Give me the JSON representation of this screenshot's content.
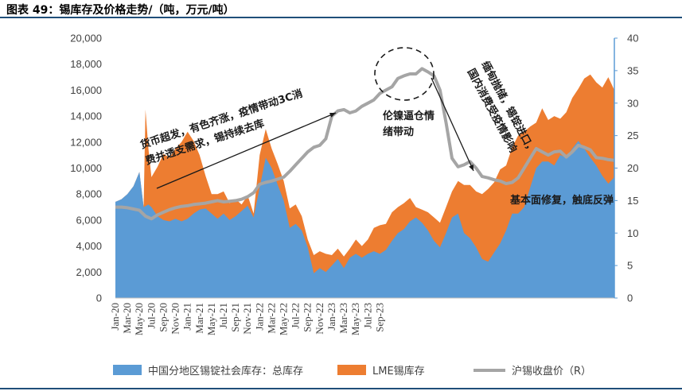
{
  "figure": {
    "title": "图表 49：锡库存及价格走势/（吨，万元/吨）"
  },
  "colors": {
    "china_stock": "#5b9bd5",
    "lme_stock": "#ed7d31",
    "price": "#a5a5a5",
    "axis_right": "#5b9bd5",
    "title_rule": "#1f4e79"
  },
  "chart_data": {
    "type": "area",
    "x_ticks": [
      "Jan-20",
      "Mar-20",
      "May-20",
      "Jul-20",
      "Sep-20",
      "Nov-20",
      "Jan-21",
      "Mar-21",
      "May-21",
      "Jul-21",
      "Sep-21",
      "Nov-21",
      "Jan-22",
      "Mar-22",
      "May-22",
      "Jul-22",
      "Sep-22",
      "Nov-22",
      "Jan-23",
      "Mar-23",
      "May-23",
      "Jul-23",
      "Sep-23"
    ],
    "y_left": {
      "min": 0,
      "max": 20000,
      "step": 2000,
      "tick_labels": [
        "0",
        "2,000",
        "4,000",
        "6,000",
        "8,000",
        "10,000",
        "12,000",
        "14,000",
        "16,000",
        "18,000",
        "20,000"
      ]
    },
    "y_right": {
      "min": 0,
      "max": 40,
      "step": 5,
      "tick_labels": [
        "0",
        "5",
        "10",
        "15",
        "20",
        "25",
        "30",
        "35",
        "40"
      ]
    },
    "series": [
      {
        "name": "中国分地区锡锭社会库存：总库存",
        "kind": "area",
        "axis": "left",
        "color": "#5b9bd5",
        "points": [
          [
            0,
            7400
          ],
          [
            1,
            7600
          ],
          [
            2,
            8000
          ],
          [
            3,
            8600
          ],
          [
            4,
            9700
          ],
          [
            4.7,
            7000
          ],
          [
            5.5,
            7200
          ],
          [
            6,
            7000
          ],
          [
            7,
            6300
          ],
          [
            8,
            6000
          ],
          [
            9,
            5900
          ],
          [
            10,
            6100
          ],
          [
            11,
            5900
          ],
          [
            12,
            6100
          ],
          [
            13,
            6500
          ],
          [
            14,
            6800
          ],
          [
            15,
            6900
          ],
          [
            16,
            6500
          ],
          [
            17,
            6100
          ],
          [
            18,
            6500
          ],
          [
            19,
            6000
          ],
          [
            20,
            6300
          ],
          [
            21,
            6700
          ],
          [
            22,
            7100
          ],
          [
            23,
            6200
          ],
          [
            24,
            8500
          ],
          [
            25,
            10800
          ],
          [
            26,
            10000
          ],
          [
            27,
            8700
          ],
          [
            28,
            7500
          ],
          [
            29,
            5400
          ],
          [
            30,
            5700
          ],
          [
            31,
            5200
          ],
          [
            32,
            3900
          ],
          [
            33,
            1900
          ],
          [
            34,
            2300
          ],
          [
            35,
            2000
          ],
          [
            36,
            2500
          ],
          [
            37,
            3000
          ],
          [
            38,
            2300
          ],
          [
            39,
            3100
          ],
          [
            40,
            3400
          ],
          [
            41,
            3100
          ],
          [
            42,
            3400
          ],
          [
            43,
            3600
          ],
          [
            44,
            3400
          ],
          [
            45,
            3700
          ],
          [
            46,
            4400
          ],
          [
            47,
            5000
          ],
          [
            48,
            5300
          ],
          [
            49,
            5900
          ],
          [
            50,
            6200
          ],
          [
            51,
            5800
          ],
          [
            52,
            5200
          ],
          [
            53,
            4400
          ],
          [
            54,
            3900
          ],
          [
            55,
            5000
          ],
          [
            56,
            6200
          ],
          [
            57,
            6500
          ],
          [
            58,
            5000
          ],
          [
            59,
            4600
          ],
          [
            60,
            3900
          ],
          [
            61,
            3000
          ],
          [
            62,
            2800
          ],
          [
            63,
            3500
          ],
          [
            64,
            4200
          ],
          [
            65,
            5200
          ],
          [
            66,
            6500
          ],
          [
            67,
            6500
          ],
          [
            68,
            7000
          ],
          [
            69,
            8500
          ],
          [
            70,
            10000
          ],
          [
            71,
            10500
          ],
          [
            72,
            10500
          ],
          [
            73,
            10200
          ],
          [
            74,
            11000
          ],
          [
            75,
            10800
          ],
          [
            76,
            11500
          ],
          [
            77,
            12100
          ],
          [
            78,
            11500
          ],
          [
            79,
            10800
          ],
          [
            80,
            10200
          ],
          [
            81,
            9400
          ],
          [
            82,
            8800
          ],
          [
            83,
            9300
          ]
        ]
      },
      {
        "name": "LME锡库存",
        "kind": "area",
        "axis": "left",
        "color": "#ed7d31",
        "points": [
          [
            0,
            7400
          ],
          [
            1,
            7600
          ],
          [
            2,
            8000
          ],
          [
            3,
            8600
          ],
          [
            4,
            9700
          ],
          [
            4.7,
            7000
          ],
          [
            5,
            14500
          ],
          [
            5.5,
            11500
          ],
          [
            6,
            9300
          ],
          [
            7,
            10100
          ],
          [
            8,
            11100
          ],
          [
            9,
            10800
          ],
          [
            10,
            11500
          ],
          [
            11,
            12000
          ],
          [
            12,
            12800
          ],
          [
            13,
            12100
          ],
          [
            14,
            11000
          ],
          [
            15,
            9400
          ],
          [
            16,
            8000
          ],
          [
            17,
            8000
          ],
          [
            18,
            8200
          ],
          [
            19,
            7300
          ],
          [
            20,
            7600
          ],
          [
            21,
            7200
          ],
          [
            22,
            7900
          ],
          [
            23,
            6500
          ],
          [
            24,
            11000
          ],
          [
            25,
            13000
          ],
          [
            26,
            11500
          ],
          [
            27,
            10300
          ],
          [
            28,
            9000
          ],
          [
            29,
            6900
          ],
          [
            30,
            7200
          ],
          [
            31,
            6300
          ],
          [
            32,
            4500
          ],
          [
            33,
            3300
          ],
          [
            34,
            3600
          ],
          [
            35,
            3400
          ],
          [
            36,
            3300
          ],
          [
            37,
            3800
          ],
          [
            38,
            3200
          ],
          [
            39,
            3800
          ],
          [
            40,
            4500
          ],
          [
            41,
            4000
          ],
          [
            42,
            4500
          ],
          [
            43,
            5400
          ],
          [
            44,
            5600
          ],
          [
            45,
            5700
          ],
          [
            46,
            6600
          ],
          [
            47,
            7000
          ],
          [
            48,
            7300
          ],
          [
            49,
            7700
          ],
          [
            50,
            7000
          ],
          [
            51,
            6800
          ],
          [
            52,
            6600
          ],
          [
            53,
            6200
          ],
          [
            54,
            5800
          ],
          [
            55,
            7000
          ],
          [
            56,
            8200
          ],
          [
            57,
            9000
          ],
          [
            58,
            8700
          ],
          [
            59,
            8700
          ],
          [
            60,
            8200
          ],
          [
            61,
            8000
          ],
          [
            62,
            8400
          ],
          [
            63,
            8900
          ],
          [
            64,
            9900
          ],
          [
            65,
            10200
          ],
          [
            66,
            11600
          ],
          [
            67,
            12500
          ],
          [
            68,
            12800
          ],
          [
            69,
            13200
          ],
          [
            70,
            13500
          ],
          [
            71,
            14600
          ],
          [
            72,
            13700
          ],
          [
            73,
            14000
          ],
          [
            74,
            13800
          ],
          [
            75,
            14300
          ],
          [
            76,
            15400
          ],
          [
            77,
            16100
          ],
          [
            78,
            16900
          ],
          [
            79,
            17200
          ],
          [
            80,
            16600
          ],
          [
            81,
            16200
          ],
          [
            82,
            17000
          ],
          [
            83,
            16000
          ]
        ]
      },
      {
        "name": "沪锡收盘价（R）",
        "kind": "line",
        "axis": "right",
        "color": "#a5a5a5",
        "points": [
          [
            0,
            14
          ],
          [
            1,
            14
          ],
          [
            2,
            13.9
          ],
          [
            3,
            13.7
          ],
          [
            4,
            13.5
          ],
          [
            5,
            12.6
          ],
          [
            6,
            12.2
          ],
          [
            7,
            12.8
          ],
          [
            8,
            13.2
          ],
          [
            9,
            13.6
          ],
          [
            10,
            13.9
          ],
          [
            11,
            14.1
          ],
          [
            12,
            14.2
          ],
          [
            13,
            14.4
          ],
          [
            14,
            14.5
          ],
          [
            15,
            14.6
          ],
          [
            16,
            14.8
          ],
          [
            17,
            15
          ],
          [
            18,
            14.8
          ],
          [
            19,
            14.9
          ],
          [
            20,
            15
          ],
          [
            21,
            15.2
          ],
          [
            22,
            15.6
          ],
          [
            23,
            16.2
          ],
          [
            24,
            17.5
          ],
          [
            25,
            17.8
          ],
          [
            26,
            18
          ],
          [
            27,
            18.3
          ],
          [
            28,
            18.6
          ],
          [
            29,
            19.5
          ],
          [
            30,
            20.5
          ],
          [
            31,
            21.5
          ],
          [
            32,
            22.5
          ],
          [
            33,
            23.2
          ],
          [
            34,
            23.5
          ],
          [
            35,
            24.5
          ],
          [
            36,
            28
          ],
          [
            37,
            28.8
          ],
          [
            38,
            29
          ],
          [
            39,
            28.5
          ],
          [
            40,
            28.8
          ],
          [
            41,
            29.5
          ],
          [
            42,
            30
          ],
          [
            43,
            30.5
          ],
          [
            44,
            31.5
          ],
          [
            45,
            32
          ],
          [
            46,
            32.5
          ],
          [
            47,
            33.8
          ],
          [
            48,
            34.2
          ],
          [
            49,
            34.5
          ],
          [
            50,
            34.5
          ],
          [
            51,
            35.3
          ],
          [
            52,
            34.8
          ],
          [
            53,
            34.2
          ],
          [
            54,
            32
          ],
          [
            55,
            27
          ],
          [
            56,
            21.5
          ],
          [
            57,
            20.2
          ],
          [
            58,
            20.5
          ],
          [
            59,
            21
          ],
          [
            60,
            20
          ],
          [
            61,
            18.7
          ],
          [
            62,
            18.5
          ],
          [
            63,
            18.2
          ],
          [
            64,
            18
          ],
          [
            65,
            17.6
          ],
          [
            66,
            17.8
          ],
          [
            67,
            18.5
          ],
          [
            68,
            20
          ],
          [
            69,
            21.5
          ],
          [
            70,
            23
          ],
          [
            71,
            22.5
          ],
          [
            72,
            22
          ],
          [
            73,
            22.5
          ],
          [
            74,
            22.6
          ],
          [
            75,
            21.7
          ],
          [
            76,
            22.5
          ],
          [
            77,
            23.5
          ],
          [
            78,
            23.2
          ],
          [
            79,
            22.8
          ],
          [
            80,
            21.6
          ],
          [
            81,
            21.5
          ],
          [
            82,
            21.3
          ],
          [
            83,
            21.2
          ]
        ]
      }
    ],
    "annotations": [
      {
        "lines": [
          "货币超发，有色齐涨，疫情带动3C消",
          "费并透支需求，锡持续去库"
        ]
      },
      {
        "lines": [
          "伦镍逼仓情",
          "绪带动"
        ]
      },
      {
        "lines": [
          "缅甸抛储，锡锭进口，",
          "国内消费受疫情影响"
        ]
      },
      {
        "lines": [
          "基本面修复，触底反弹"
        ]
      }
    ],
    "legend_position": "bottom"
  }
}
